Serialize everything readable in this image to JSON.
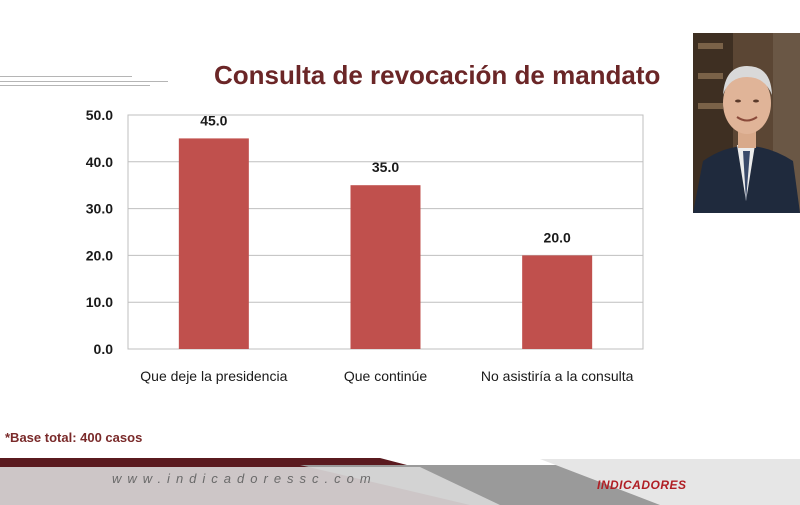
{
  "chart_data": {
    "type": "bar",
    "title": "Consulta de revocación de mandato",
    "categories": [
      "Que deje la presidencia",
      "Que continúe",
      "No asistiría a la consulta"
    ],
    "values": [
      45.0,
      35.0,
      20.0
    ],
    "data_labels": [
      "45.0",
      "35.0",
      "20.0"
    ],
    "y_ticks": [
      "0.0",
      "10.0",
      "20.0",
      "30.0",
      "40.0",
      "50.0"
    ],
    "ylim": [
      0,
      50
    ],
    "grid": true,
    "legend": "none",
    "bar_color": "#c0504d"
  },
  "footnote": "*Base total: 400 casos",
  "footer": {
    "url": "www.indicadoressc.com",
    "logo": "INDICADORES"
  },
  "colors": {
    "title": "#6b2627",
    "footer_dark": "#5a1a1f",
    "footer_grey": "#9a9a9a"
  }
}
